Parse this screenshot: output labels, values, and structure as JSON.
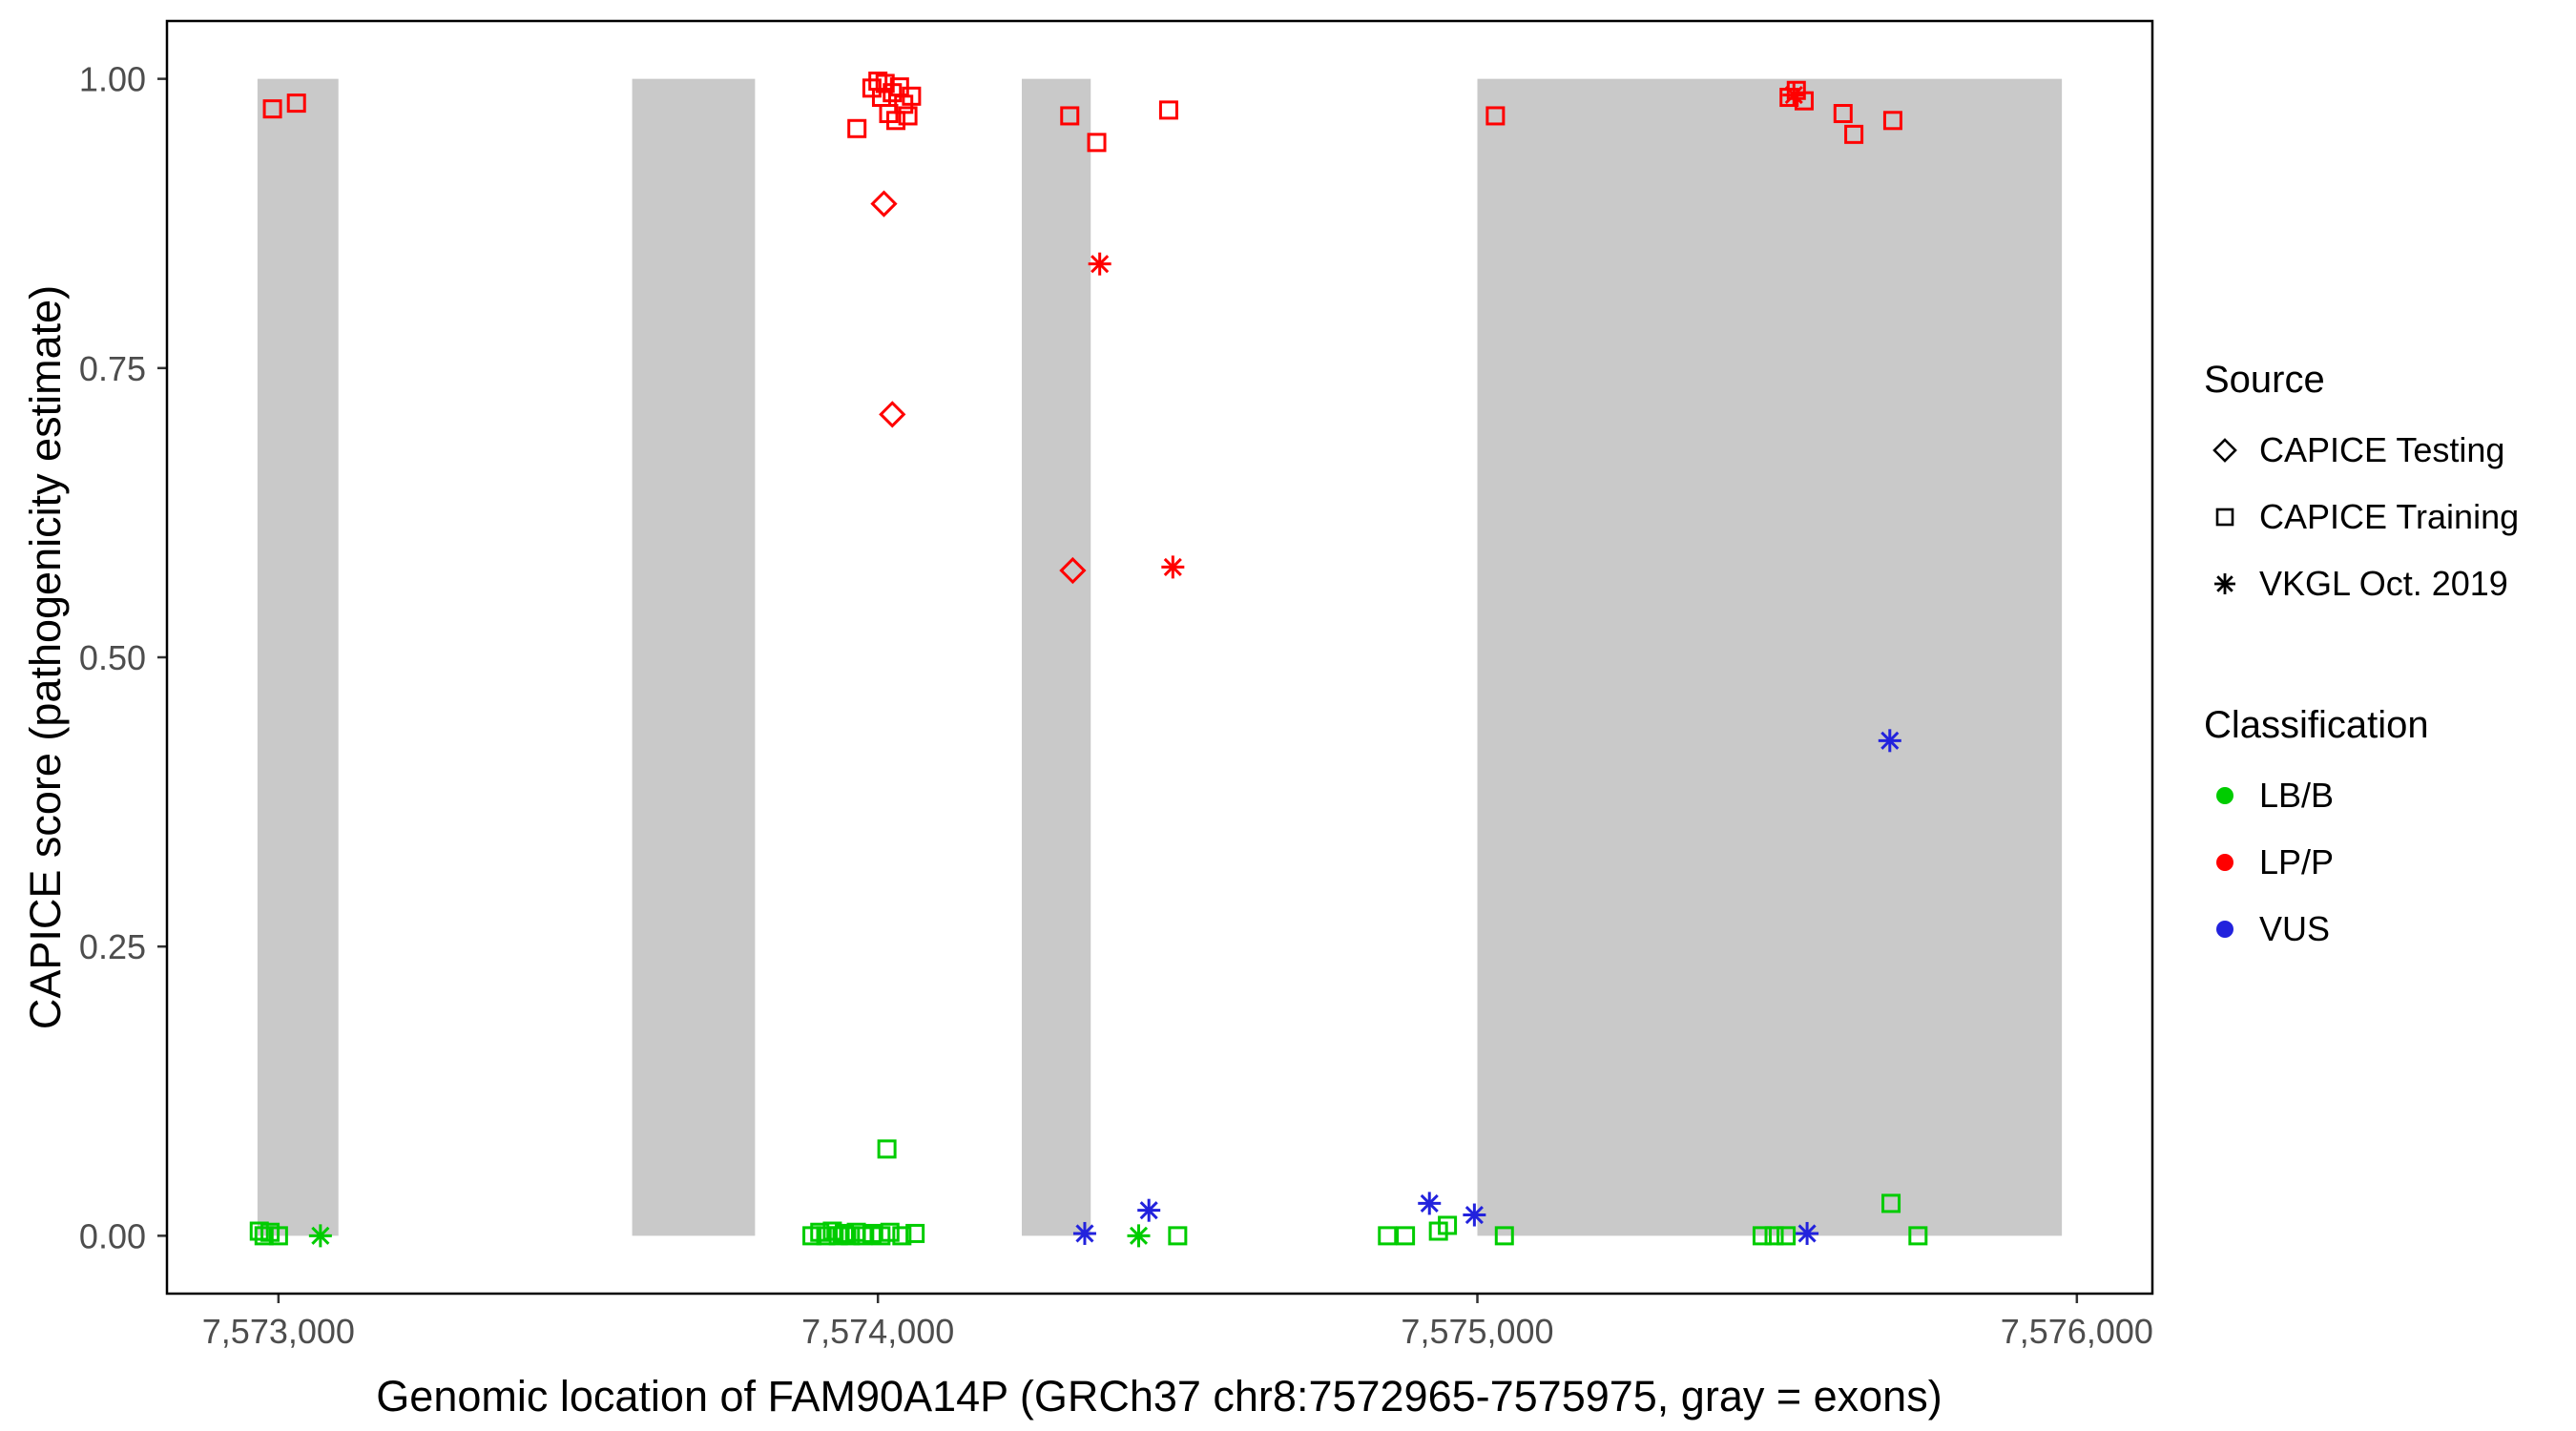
{
  "chart_data": {
    "type": "scatter",
    "title": "",
    "xlabel": "Genomic location of FAM90A14P (GRCh37 chr8:7572965-7575975, gray = exons)",
    "ylabel": "CAPICE score (pathogenicity estimate)",
    "xlim": [
      7572814,
      7576126
    ],
    "ylim": [
      -0.05,
      1.05
    ],
    "grid": false,
    "x_ticks": [
      {
        "value": 7573000,
        "label": "7,573,000"
      },
      {
        "value": 7574000,
        "label": "7,574,000"
      },
      {
        "value": 7575000,
        "label": "7,575,000"
      },
      {
        "value": 7576000,
        "label": "7,576,000"
      }
    ],
    "y_ticks": [
      {
        "value": 0.0,
        "label": "0.00"
      },
      {
        "value": 0.25,
        "label": "0.25"
      },
      {
        "value": 0.5,
        "label": "0.50"
      },
      {
        "value": 0.75,
        "label": "0.75"
      },
      {
        "value": 1.0,
        "label": "1.00"
      }
    ],
    "exon_color": "#C9C9C9",
    "exons": [
      {
        "start": 7572965,
        "end": 7573100
      },
      {
        "start": 7573590,
        "end": 7573795
      },
      {
        "start": 7574240,
        "end": 7574355
      },
      {
        "start": 7575000,
        "end": 7575975
      }
    ],
    "colors": {
      "LB/B": "#00CC00",
      "LP/P": "#FF0000",
      "VUS": "#2222DD"
    },
    "shapes": {
      "CAPICE Testing": "diamond",
      "CAPICE Training": "square",
      "VKGL Oct. 2019": "asterisk"
    },
    "points": [
      {
        "x": 7572990,
        "y": 0.974,
        "source": "CAPICE Training",
        "class": "LP/P"
      },
      {
        "x": 7573030,
        "y": 0.979,
        "source": "CAPICE Training",
        "class": "LP/P"
      },
      {
        "x": 7573965,
        "y": 0.957,
        "source": "CAPICE Training",
        "class": "LP/P"
      },
      {
        "x": 7573990,
        "y": 0.992,
        "source": "CAPICE Training",
        "class": "LP/P"
      },
      {
        "x": 7574000,
        "y": 0.998,
        "source": "CAPICE Training",
        "class": "LP/P"
      },
      {
        "x": 7574006,
        "y": 0.984,
        "source": "CAPICE Training",
        "class": "LP/P"
      },
      {
        "x": 7574012,
        "y": 0.996,
        "source": "CAPICE Training",
        "class": "LP/P"
      },
      {
        "x": 7574018,
        "y": 0.97,
        "source": "CAPICE Training",
        "class": "LP/P"
      },
      {
        "x": 7574024,
        "y": 0.988,
        "source": "CAPICE Training",
        "class": "LP/P"
      },
      {
        "x": 7574030,
        "y": 0.964,
        "source": "CAPICE Training",
        "class": "LP/P"
      },
      {
        "x": 7574036,
        "y": 0.993,
        "source": "CAPICE Training",
        "class": "LP/P"
      },
      {
        "x": 7574043,
        "y": 0.978,
        "source": "CAPICE Training",
        "class": "LP/P"
      },
      {
        "x": 7574050,
        "y": 0.968,
        "source": "CAPICE Training",
        "class": "LP/P"
      },
      {
        "x": 7574056,
        "y": 0.985,
        "source": "CAPICE Training",
        "class": "LP/P"
      },
      {
        "x": 7574320,
        "y": 0.968,
        "source": "CAPICE Training",
        "class": "LP/P"
      },
      {
        "x": 7574365,
        "y": 0.945,
        "source": "CAPICE Training",
        "class": "LP/P"
      },
      {
        "x": 7574485,
        "y": 0.973,
        "source": "CAPICE Training",
        "class": "LP/P"
      },
      {
        "x": 7575030,
        "y": 0.968,
        "source": "CAPICE Training",
        "class": "LP/P"
      },
      {
        "x": 7575520,
        "y": 0.984,
        "source": "CAPICE Training",
        "class": "LP/P"
      },
      {
        "x": 7575532,
        "y": 0.99,
        "source": "CAPICE Training",
        "class": "LP/P"
      },
      {
        "x": 7575545,
        "y": 0.981,
        "source": "CAPICE Training",
        "class": "LP/P"
      },
      {
        "x": 7575610,
        "y": 0.97,
        "source": "CAPICE Training",
        "class": "LP/P"
      },
      {
        "x": 7575628,
        "y": 0.952,
        "source": "CAPICE Training",
        "class": "LP/P"
      },
      {
        "x": 7575693,
        "y": 0.964,
        "source": "CAPICE Training",
        "class": "LP/P"
      },
      {
        "x": 7574010,
        "y": 0.892,
        "source": "CAPICE Testing",
        "class": "LP/P"
      },
      {
        "x": 7574024,
        "y": 0.71,
        "source": "CAPICE Testing",
        "class": "LP/P"
      },
      {
        "x": 7574325,
        "y": 0.575,
        "source": "CAPICE Testing",
        "class": "LP/P"
      },
      {
        "x": 7574370,
        "y": 0.84,
        "source": "VKGL Oct. 2019",
        "class": "LP/P"
      },
      {
        "x": 7574492,
        "y": 0.578,
        "source": "VKGL Oct. 2019",
        "class": "LP/P"
      },
      {
        "x": 7575528,
        "y": 0.986,
        "source": "VKGL Oct. 2019",
        "class": "LP/P"
      },
      {
        "x": 7572968,
        "y": 0.004,
        "source": "CAPICE Training",
        "class": "LB/B"
      },
      {
        "x": 7572976,
        "y": 0.0,
        "source": "CAPICE Training",
        "class": "LB/B"
      },
      {
        "x": 7572986,
        "y": 0.003,
        "source": "CAPICE Training",
        "class": "LB/B"
      },
      {
        "x": 7573000,
        "y": 0.0,
        "source": "CAPICE Training",
        "class": "LB/B"
      },
      {
        "x": 7573070,
        "y": 0.0,
        "source": "VKGL Oct. 2019",
        "class": "LB/B"
      },
      {
        "x": 7573890,
        "y": 0.0,
        "source": "CAPICE Training",
        "class": "LB/B"
      },
      {
        "x": 7573903,
        "y": 0.003,
        "source": "CAPICE Training",
        "class": "LB/B"
      },
      {
        "x": 7573913,
        "y": 0.0,
        "source": "CAPICE Training",
        "class": "LB/B"
      },
      {
        "x": 7573924,
        "y": 0.004,
        "source": "CAPICE Training",
        "class": "LB/B"
      },
      {
        "x": 7573934,
        "y": 0.0,
        "source": "CAPICE Training",
        "class": "LB/B"
      },
      {
        "x": 7573944,
        "y": 0.002,
        "source": "CAPICE Training",
        "class": "LB/B"
      },
      {
        "x": 7573954,
        "y": 0.0,
        "source": "CAPICE Training",
        "class": "LB/B"
      },
      {
        "x": 7573964,
        "y": 0.003,
        "source": "CAPICE Training",
        "class": "LB/B"
      },
      {
        "x": 7573975,
        "y": 0.0,
        "source": "CAPICE Training",
        "class": "LB/B"
      },
      {
        "x": 7573990,
        "y": 0.002,
        "source": "CAPICE Training",
        "class": "LB/B"
      },
      {
        "x": 7574005,
        "y": 0.0,
        "source": "CAPICE Training",
        "class": "LB/B"
      },
      {
        "x": 7574020,
        "y": 0.003,
        "source": "CAPICE Training",
        "class": "LB/B"
      },
      {
        "x": 7574040,
        "y": 0.0,
        "source": "CAPICE Training",
        "class": "LB/B"
      },
      {
        "x": 7574062,
        "y": 0.002,
        "source": "CAPICE Training",
        "class": "LB/B"
      },
      {
        "x": 7574015,
        "y": 0.075,
        "source": "CAPICE Training",
        "class": "LB/B"
      },
      {
        "x": 7574345,
        "y": 0.002,
        "source": "VKGL Oct. 2019",
        "class": "VUS"
      },
      {
        "x": 7574435,
        "y": 0.0,
        "source": "VKGL Oct. 2019",
        "class": "LB/B"
      },
      {
        "x": 7574452,
        "y": 0.022,
        "source": "VKGL Oct. 2019",
        "class": "VUS"
      },
      {
        "x": 7574500,
        "y": 0.0,
        "source": "CAPICE Training",
        "class": "LB/B"
      },
      {
        "x": 7574850,
        "y": 0.0,
        "source": "CAPICE Training",
        "class": "LB/B"
      },
      {
        "x": 7574880,
        "y": 0.0,
        "source": "CAPICE Training",
        "class": "LB/B"
      },
      {
        "x": 7574920,
        "y": 0.028,
        "source": "VKGL Oct. 2019",
        "class": "VUS"
      },
      {
        "x": 7574935,
        "y": 0.004,
        "source": "CAPICE Training",
        "class": "LB/B"
      },
      {
        "x": 7574950,
        "y": 0.009,
        "source": "CAPICE Training",
        "class": "LB/B"
      },
      {
        "x": 7574995,
        "y": 0.018,
        "source": "VKGL Oct. 2019",
        "class": "VUS"
      },
      {
        "x": 7575045,
        "y": 0.0,
        "source": "CAPICE Training",
        "class": "LB/B"
      },
      {
        "x": 7575475,
        "y": 0.0,
        "source": "CAPICE Training",
        "class": "LB/B"
      },
      {
        "x": 7575495,
        "y": 0.0,
        "source": "CAPICE Training",
        "class": "LB/B"
      },
      {
        "x": 7575515,
        "y": 0.0,
        "source": "CAPICE Training",
        "class": "LB/B"
      },
      {
        "x": 7575550,
        "y": 0.002,
        "source": "VKGL Oct. 2019",
        "class": "VUS"
      },
      {
        "x": 7575690,
        "y": 0.028,
        "source": "CAPICE Training",
        "class": "LB/B"
      },
      {
        "x": 7575735,
        "y": 0.0,
        "source": "CAPICE Training",
        "class": "LB/B"
      },
      {
        "x": 7575688,
        "y": 0.428,
        "source": "VKGL Oct. 2019",
        "class": "VUS"
      }
    ]
  },
  "legend": {
    "source_title": "Source",
    "source_items": [
      {
        "label": "CAPICE Testing",
        "shape": "diamond"
      },
      {
        "label": "CAPICE Training",
        "shape": "square"
      },
      {
        "label": "VKGL Oct. 2019",
        "shape": "asterisk"
      }
    ],
    "class_title": "Classification",
    "class_items": [
      {
        "label": "LB/B",
        "color": "#00CC00"
      },
      {
        "label": "LP/P",
        "color": "#FF0000"
      },
      {
        "label": "VUS",
        "color": "#2222DD"
      }
    ]
  }
}
